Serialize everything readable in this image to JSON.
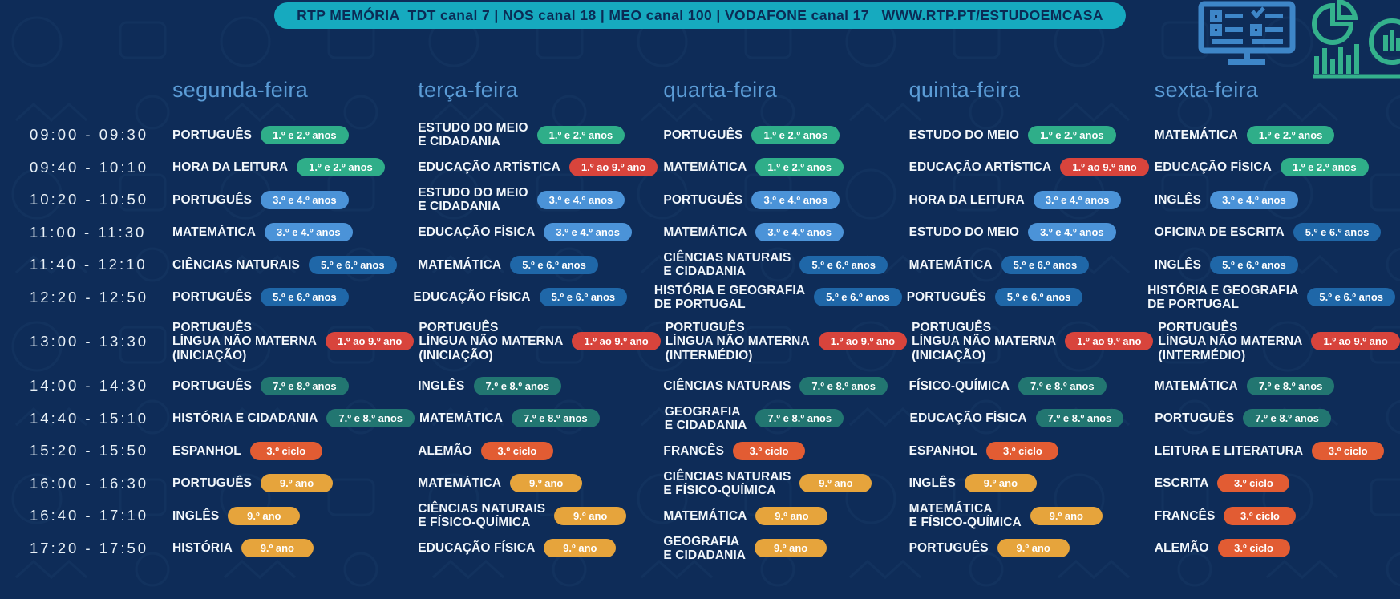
{
  "banner": {
    "text": "RTP MEMÓRIA  TDT canal 7 | NOS canal 18 | MEO canal 100 | VODAFONE canal 17   WWW.RTP.PT/ESTUDOEMCASA"
  },
  "colors": {
    "background": "#0e2c58",
    "banner_bg": "#16aabf",
    "banner_text": "#0b2b55",
    "day_header": "#5b9cd6",
    "subject_text": "#f2f7fb"
  },
  "days": [
    "segunda-feira",
    "terça-feira",
    "quarta-feira",
    "quinta-feira",
    "sexta-feira"
  ],
  "badges": {
    "g12": {
      "label": "1.º e 2.º anos",
      "color": "#2fae89"
    },
    "b34": {
      "label": "3.º e 4.º anos",
      "color": "#4b93d8"
    },
    "b56": {
      "label": "5.º e 6.º anos",
      "color": "#1f67a8"
    },
    "t78": {
      "label": "7.º e 8.º anos",
      "color": "#227671"
    },
    "r19": {
      "label": "1.º ao 9.º ano",
      "color": "#d8443c"
    },
    "o3c": {
      "label": "3.º ciclo",
      "color": "#e25c33"
    },
    "y9": {
      "label": "9.º ano",
      "color": "#e6a43c"
    }
  },
  "schedule": [
    {
      "time": "09:00 - 09:30",
      "cells": [
        {
          "subject": [
            "PORTUGUÊS"
          ],
          "badge": "g12"
        },
        {
          "subject": [
            "ESTUDO DO MEIO",
            "E CIDADANIA"
          ],
          "badge": "g12"
        },
        {
          "subject": [
            "PORTUGUÊS"
          ],
          "badge": "g12"
        },
        {
          "subject": [
            "ESTUDO DO MEIO"
          ],
          "badge": "g12"
        },
        {
          "subject": [
            "MATEMÁTICA"
          ],
          "badge": "g12"
        }
      ]
    },
    {
      "time": "09:40 - 10:10",
      "cells": [
        {
          "subject": [
            "HORA DA LEITURA"
          ],
          "badge": "g12"
        },
        {
          "subject": [
            "EDUCAÇÃO ARTÍSTICA"
          ],
          "badge": "r19"
        },
        {
          "subject": [
            "MATEMÁTICA"
          ],
          "badge": "g12"
        },
        {
          "subject": [
            "EDUCAÇÃO ARTÍSTICA"
          ],
          "badge": "r19"
        },
        {
          "subject": [
            "EDUCAÇÃO FÍSICA"
          ],
          "badge": "g12"
        }
      ]
    },
    {
      "time": "10:20 - 10:50",
      "cells": [
        {
          "subject": [
            "PORTUGUÊS"
          ],
          "badge": "b34"
        },
        {
          "subject": [
            "ESTUDO DO MEIO",
            "E CIDADANIA"
          ],
          "badge": "b34"
        },
        {
          "subject": [
            "PORTUGUÊS"
          ],
          "badge": "b34"
        },
        {
          "subject": [
            "HORA DA LEITURA"
          ],
          "badge": "b34"
        },
        {
          "subject": [
            "INGLÊS"
          ],
          "badge": "b34"
        }
      ]
    },
    {
      "time": "11:00 - 11:30",
      "cells": [
        {
          "subject": [
            "MATEMÁTICA"
          ],
          "badge": "b34"
        },
        {
          "subject": [
            "EDUCAÇÃO FÍSICA"
          ],
          "badge": "b34"
        },
        {
          "subject": [
            "MATEMÁTICA"
          ],
          "badge": "b34"
        },
        {
          "subject": [
            "ESTUDO DO MEIO"
          ],
          "badge": "b34"
        },
        {
          "subject": [
            "OFICINA DE ESCRITA"
          ],
          "badge": "b56"
        }
      ]
    },
    {
      "time": "11:40 - 12:10",
      "cells": [
        {
          "subject": [
            "CIÊNCIAS NATURAIS"
          ],
          "badge": "b56"
        },
        {
          "subject": [
            "MATEMÁTICA"
          ],
          "badge": "b56"
        },
        {
          "subject": [
            "CIÊNCIAS NATURAIS",
            "E CIDADANIA"
          ],
          "badge": "b56"
        },
        {
          "subject": [
            "MATEMÁTICA"
          ],
          "badge": "b56"
        },
        {
          "subject": [
            "INGLÊS"
          ],
          "badge": "b56"
        }
      ]
    },
    {
      "time": "12:20 - 12:50",
      "cells": [
        {
          "subject": [
            "PORTUGUÊS"
          ],
          "badge": "b56"
        },
        {
          "subject": [
            "EDUCAÇÃO FÍSICA"
          ],
          "badge": "b56"
        },
        {
          "subject": [
            "HISTÓRIA E GEOGRAFIA",
            "DE PORTUGAL"
          ],
          "badge": "b56"
        },
        {
          "subject": [
            "PORTUGUÊS"
          ],
          "badge": "b56"
        },
        {
          "subject": [
            "HISTÓRIA E GEOGRAFIA",
            "DE PORTUGAL"
          ],
          "badge": "b56"
        }
      ]
    },
    {
      "time": "13:00 - 13:30",
      "cells": [
        {
          "subject": [
            "PORTUGUÊS",
            "LÍNGUA NÃO MATERNA",
            "(INICIAÇÃO)"
          ],
          "badge": "r19"
        },
        {
          "subject": [
            "PORTUGUÊS",
            "LÍNGUA NÃO MATERNA",
            "(INICIAÇÃO)"
          ],
          "badge": "r19"
        },
        {
          "subject": [
            "PORTUGUÊS",
            "LÍNGUA NÃO MATERNA",
            "(INTERMÉDIO)"
          ],
          "badge": "r19"
        },
        {
          "subject": [
            "PORTUGUÊS",
            "LÍNGUA NÃO MATERNA",
            "(INICIAÇÃO)"
          ],
          "badge": "r19"
        },
        {
          "subject": [
            "PORTUGUÊS",
            "LÍNGUA NÃO MATERNA",
            "(INTERMÉDIO)"
          ],
          "badge": "r19"
        }
      ]
    },
    {
      "time": "14:00 - 14:30",
      "cells": [
        {
          "subject": [
            "PORTUGUÊS"
          ],
          "badge": "t78"
        },
        {
          "subject": [
            "INGLÊS"
          ],
          "badge": "t78"
        },
        {
          "subject": [
            "CIÊNCIAS NATURAIS"
          ],
          "badge": "t78"
        },
        {
          "subject": [
            "FÍSICO-QUÍMICA"
          ],
          "badge": "t78"
        },
        {
          "subject": [
            "MATEMÁTICA"
          ],
          "badge": "t78"
        }
      ]
    },
    {
      "time": "14:40 - 15:10",
      "cells": [
        {
          "subject": [
            "HISTÓRIA E CIDADANIA"
          ],
          "badge": "t78"
        },
        {
          "subject": [
            "MATEMÁTICA"
          ],
          "badge": "t78"
        },
        {
          "subject": [
            "GEOGRAFIA",
            "E CIDADANIA"
          ],
          "badge": "t78"
        },
        {
          "subject": [
            "EDUCAÇÃO FÍSICA"
          ],
          "badge": "t78"
        },
        {
          "subject": [
            "PORTUGUÊS"
          ],
          "badge": "t78"
        }
      ]
    },
    {
      "time": "15:20 - 15:50",
      "cells": [
        {
          "subject": [
            "ESPANHOL"
          ],
          "badge": "o3c"
        },
        {
          "subject": [
            "ALEMÃO"
          ],
          "badge": "o3c"
        },
        {
          "subject": [
            "FRANCÊS"
          ],
          "badge": "o3c"
        },
        {
          "subject": [
            "ESPANHOL"
          ],
          "badge": "o3c"
        },
        {
          "subject": [
            "LEITURA E LITERATURA"
          ],
          "badge": "o3c"
        }
      ]
    },
    {
      "time": "16:00 - 16:30",
      "cells": [
        {
          "subject": [
            "PORTUGUÊS"
          ],
          "badge": "y9"
        },
        {
          "subject": [
            "MATEMÁTICA"
          ],
          "badge": "y9"
        },
        {
          "subject": [
            "CIÊNCIAS NATURAIS",
            "E FÍSICO-QUÍMICA"
          ],
          "badge": "y9"
        },
        {
          "subject": [
            "INGLÊS"
          ],
          "badge": "y9"
        },
        {
          "subject": [
            "ESCRITA"
          ],
          "badge": "o3c"
        }
      ]
    },
    {
      "time": "16:40 - 17:10",
      "cells": [
        {
          "subject": [
            "INGLÊS"
          ],
          "badge": "y9"
        },
        {
          "subject": [
            "CIÊNCIAS NATURAIS",
            "E FÍSICO-QUÍMICA"
          ],
          "badge": "y9"
        },
        {
          "subject": [
            "MATEMÁTICA"
          ],
          "badge": "y9"
        },
        {
          "subject": [
            "MATEMÁTICA",
            "E FÍSICO-QUÍMICA"
          ],
          "badge": "y9"
        },
        {
          "subject": [
            "FRANCÊS"
          ],
          "badge": "o3c"
        }
      ]
    },
    {
      "time": "17:20 - 17:50",
      "cells": [
        {
          "subject": [
            "HISTÓRIA"
          ],
          "badge": "y9"
        },
        {
          "subject": [
            "EDUCAÇÃO FÍSICA"
          ],
          "badge": "y9"
        },
        {
          "subject": [
            "GEOGRAFIA",
            "E CIDADANIA"
          ],
          "badge": "y9"
        },
        {
          "subject": [
            "PORTUGUÊS"
          ],
          "badge": "y9"
        },
        {
          "subject": [
            "ALEMÃO"
          ],
          "badge": "o3c"
        }
      ]
    }
  ]
}
